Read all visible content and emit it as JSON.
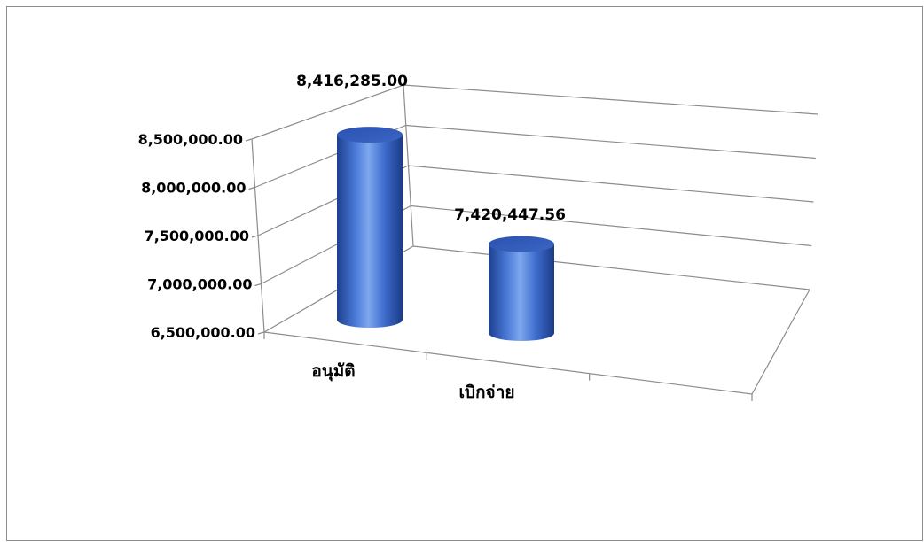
{
  "chart_data": {
    "type": "bar",
    "style": "3d-cylinder",
    "categories": [
      "อนุมัติ",
      "เบิกจ่าย"
    ],
    "values": [
      8416285.0,
      7420447.56
    ],
    "data_labels": [
      "8,416,285.00",
      "7,420,447.56"
    ],
    "y_ticks": [
      6500000,
      7000000,
      7500000,
      8000000,
      8500000
    ],
    "y_tick_labels": [
      "6,500,000.00",
      "7,000,000.00",
      "7,500,000.00",
      "8,000,000.00",
      "8,500,000.00"
    ],
    "ylim": [
      6500000,
      8500000
    ],
    "grid": true,
    "legend": "none",
    "colors": {
      "bar_fill": "#3f6fcf",
      "bar_dark": "#1f3f8f",
      "bar_light": "#7fa6ee",
      "bar_top": "#2f58b8",
      "gridline": "#8c8c8c",
      "frame": "#8c8c8c"
    }
  }
}
